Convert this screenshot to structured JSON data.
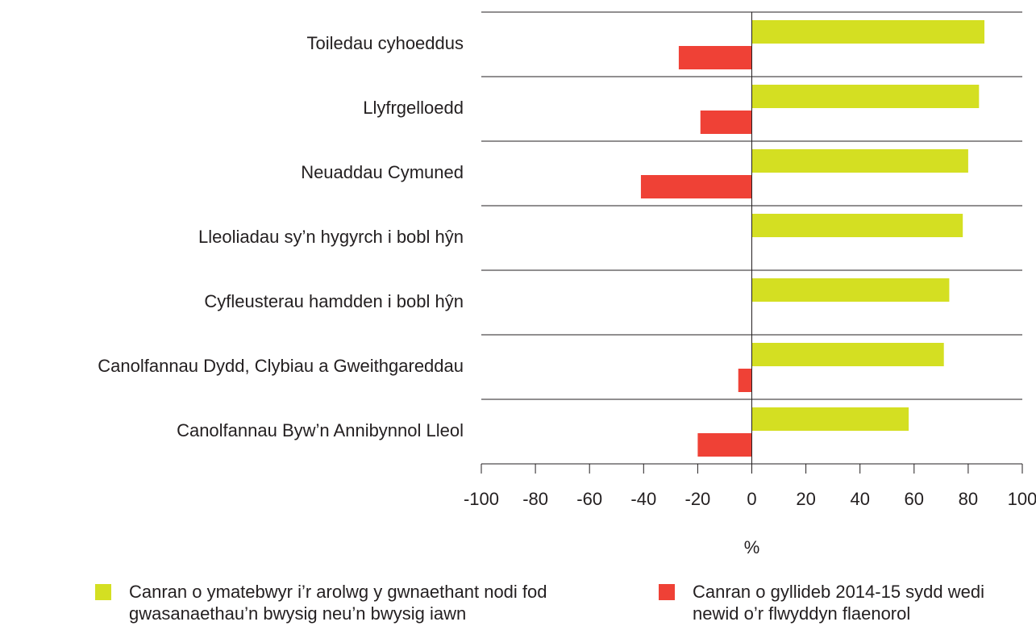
{
  "chart_data": {
    "type": "bar",
    "orientation": "horizontal",
    "categories": [
      "Toiledau cyhoeddus",
      "Llyfrgelloedd",
      "Neuaddau Cymuned",
      "Lleoliadau sy’n hygyrch i bobl hŷn",
      "Cyfleusterau hamdden i bobl hŷn",
      "Canolfannau Dydd, Clybiau a Gweithgareddau",
      "Canolfannau Byw’n Annibynnol Lleol"
    ],
    "series": [
      {
        "name": "Canran o ymatebwyr i’r arolwg y gwnaethant nodi fod gwasanaethau’n bwysig neu’n bwysig iawn",
        "color": "#d4df22",
        "values": [
          86,
          84,
          80,
          78,
          73,
          71,
          58
        ]
      },
      {
        "name": "Canran o gyllideb 2014-15 sydd wedi newid o’r flwyddyn flaenorol",
        "color": "#ef4136",
        "values": [
          -27,
          -19,
          -41,
          null,
          null,
          -5,
          -20
        ]
      }
    ],
    "xlabel": "%",
    "xlim": [
      -100,
      100
    ],
    "xticks": [
      -100,
      -80,
      -60,
      -40,
      -20,
      0,
      20,
      40,
      60,
      80,
      100
    ]
  }
}
